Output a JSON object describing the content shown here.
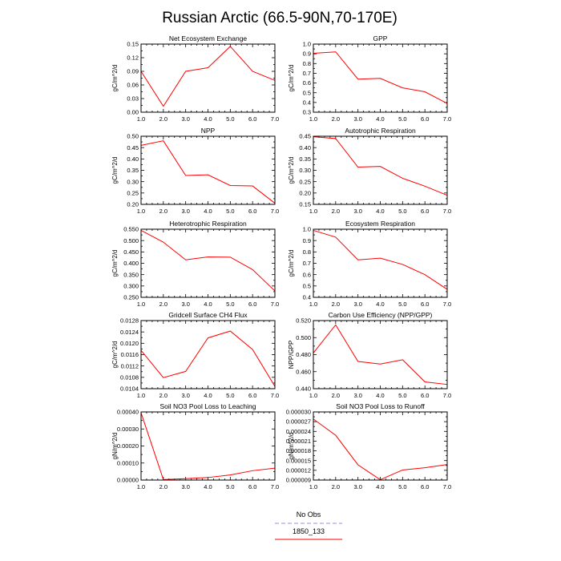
{
  "title": "Russian Arctic (66.5-90N,70-170E)",
  "legend": [
    {
      "name": "No Obs",
      "color": "#8c8cf2",
      "dash": true
    },
    {
      "name": "1850_133",
      "color": "#ff0000",
      "dash": false
    }
  ],
  "chart_data": [
    {
      "type": "line",
      "title": "Net Ecosystem Exchange",
      "ylabel": "gC/m^2/d",
      "x": [
        1,
        2,
        3,
        4,
        5,
        6,
        7
      ],
      "series": [
        {
          "name": "1850_133",
          "color": "#ff0000",
          "values": [
            0.09,
            0.013,
            0.09,
            0.098,
            0.145,
            0.09,
            0.07
          ]
        }
      ],
      "xlim": [
        1,
        7
      ],
      "ylim": [
        0,
        0.15
      ],
      "xticks": [
        "1.0",
        "2.0",
        "3.0",
        "4.0",
        "5.0",
        "6.0",
        "7.0"
      ],
      "yticks": [
        "0.00",
        "0.03",
        "0.06",
        "0.09",
        "0.12",
        "0.15"
      ]
    },
    {
      "type": "line",
      "title": "GPP",
      "ylabel": "gC/m^2/d",
      "x": [
        1,
        2,
        3,
        4,
        5,
        6,
        7
      ],
      "series": [
        {
          "name": "1850_133",
          "color": "#ff0000",
          "values": [
            0.905,
            0.92,
            0.64,
            0.648,
            0.55,
            0.51,
            0.39
          ]
        }
      ],
      "xlim": [
        1,
        7
      ],
      "ylim": [
        0.3,
        1.0
      ],
      "xticks": [
        "1.0",
        "2.0",
        "3.0",
        "4.0",
        "5.0",
        "6.0",
        "7.0"
      ],
      "yticks": [
        "0.3",
        "0.4",
        "0.5",
        "0.6",
        "0.7",
        "0.8",
        "0.9",
        "1.0"
      ]
    },
    {
      "type": "line",
      "title": "NPP",
      "ylabel": "gC/m^2/d",
      "x": [
        1,
        2,
        3,
        4,
        5,
        6,
        7
      ],
      "series": [
        {
          "name": "1850_133",
          "color": "#ff0000",
          "values": [
            0.46,
            0.48,
            0.327,
            0.33,
            0.283,
            0.281,
            0.205
          ]
        }
      ],
      "xlim": [
        1,
        7
      ],
      "ylim": [
        0.2,
        0.5
      ],
      "xticks": [
        "1.0",
        "2.0",
        "3.0",
        "4.0",
        "5.0",
        "6.0",
        "7.0"
      ],
      "yticks": [
        "0.20",
        "0.25",
        "0.30",
        "0.35",
        "0.40",
        "0.45",
        "0.50"
      ]
    },
    {
      "type": "line",
      "title": "Autotrophic Respiration",
      "ylabel": "gC/m^2/d",
      "x": [
        1,
        2,
        3,
        4,
        5,
        6,
        7
      ],
      "series": [
        {
          "name": "1850_133",
          "color": "#ff0000",
          "values": [
            0.448,
            0.44,
            0.314,
            0.317,
            0.265,
            0.23,
            0.19
          ]
        }
      ],
      "xlim": [
        1,
        7
      ],
      "ylim": [
        0.15,
        0.45
      ],
      "xticks": [
        "1.0",
        "2.0",
        "3.0",
        "4.0",
        "5.0",
        "6.0",
        "7.0"
      ],
      "yticks": [
        "0.15",
        "0.20",
        "0.25",
        "0.30",
        "0.35",
        "0.40",
        "0.45"
      ]
    },
    {
      "type": "line",
      "title": "Heterotrophic Respiration",
      "ylabel": "gC/m^2/d",
      "x": [
        1,
        2,
        3,
        4,
        5,
        6,
        7
      ],
      "series": [
        {
          "name": "1850_133",
          "color": "#ff0000",
          "values": [
            0.545,
            0.493,
            0.415,
            0.428,
            0.427,
            0.372,
            0.278
          ]
        }
      ],
      "xlim": [
        1,
        7
      ],
      "ylim": [
        0.25,
        0.55
      ],
      "xticks": [
        "1.0",
        "2.0",
        "3.0",
        "4.0",
        "5.0",
        "6.0",
        "7.0"
      ],
      "yticks": [
        "0.250",
        "0.300",
        "0.350",
        "0.400",
        "0.450",
        "0.500",
        "0.550"
      ]
    },
    {
      "type": "line",
      "title": "Ecosystem Respiration",
      "ylabel": "gC/m^2/d",
      "x": [
        1,
        2,
        3,
        4,
        5,
        6,
        7
      ],
      "series": [
        {
          "name": "1850_133",
          "color": "#ff0000",
          "values": [
            0.99,
            0.93,
            0.73,
            0.745,
            0.69,
            0.6,
            0.47
          ]
        }
      ],
      "xlim": [
        1,
        7
      ],
      "ylim": [
        0.4,
        1.0
      ],
      "xticks": [
        "1.0",
        "2.0",
        "3.0",
        "4.0",
        "5.0",
        "6.0",
        "7.0"
      ],
      "yticks": [
        "0.4",
        "0.5",
        "0.6",
        "0.7",
        "0.8",
        "0.9",
        "1.0"
      ]
    },
    {
      "type": "line",
      "title": "Gridcell Surface CH4 Flux",
      "ylabel": "gC/m^2/d",
      "x": [
        1,
        2,
        3,
        4,
        5,
        6,
        7
      ],
      "series": [
        {
          "name": "1850_133",
          "color": "#ff0000",
          "values": [
            0.01175,
            0.01079,
            0.01101,
            0.01219,
            0.01243,
            0.01178,
            0.01048
          ]
        }
      ],
      "xlim": [
        1,
        7
      ],
      "ylim": [
        0.0104,
        0.0128
      ],
      "xticks": [
        "1.0",
        "2.0",
        "3.0",
        "4.0",
        "5.0",
        "6.0",
        "7.0"
      ],
      "yticks": [
        "0.0104",
        "0.0108",
        "0.0112",
        "0.0116",
        "0.0120",
        "0.0124",
        "0.0128"
      ]
    },
    {
      "type": "line",
      "title": "Carbon Use Efficiency (NPP/GPP)",
      "ylabel": "NPP/GPP",
      "x": [
        1,
        2,
        3,
        4,
        5,
        6,
        7
      ],
      "series": [
        {
          "name": "1850_133",
          "color": "#ff0000",
          "values": [
            0.482,
            0.515,
            0.472,
            0.469,
            0.474,
            0.448,
            0.445
          ]
        }
      ],
      "xlim": [
        1,
        7
      ],
      "ylim": [
        0.44,
        0.52
      ],
      "xticks": [
        "1.0",
        "2.0",
        "3.0",
        "4.0",
        "5.0",
        "6.0",
        "7.0"
      ],
      "yticks": [
        "0.440",
        "0.460",
        "0.480",
        "0.500",
        "0.520"
      ]
    },
    {
      "type": "line",
      "title": "Soil NO3 Pool Loss to Leaching",
      "ylabel": "gN/m^2/d",
      "x": [
        1,
        2,
        3,
        4,
        5,
        6,
        7
      ],
      "series": [
        {
          "name": "1850_133",
          "color": "#ff0000",
          "values": [
            0.000395,
            3e-06,
            8e-06,
            1.5e-05,
            3e-05,
            5.5e-05,
            7e-05
          ]
        }
      ],
      "xlim": [
        1,
        7
      ],
      "ylim": [
        0,
        0.0004
      ],
      "xticks": [
        "1.0",
        "2.0",
        "3.0",
        "4.0",
        "5.0",
        "6.0",
        "7.0"
      ],
      "yticks": [
        "0.00000",
        "0.00010",
        "0.00020",
        "0.00030",
        "0.00040"
      ]
    },
    {
      "type": "line",
      "title": "Soil NO3 Pool Loss to Runoff",
      "ylabel": "gN/m^2/d",
      "x": [
        1,
        2,
        3,
        4,
        5,
        6,
        7
      ],
      "series": [
        {
          "name": "1850_133",
          "color": "#ff0000",
          "values": [
            2.78e-05,
            2.28e-05,
            1.37e-05,
            9.1e-06,
            1.21e-05,
            1.28e-05,
            1.38e-05
          ]
        }
      ],
      "xlim": [
        1,
        7
      ],
      "ylim": [
        9e-06,
        3e-05
      ],
      "xticks": [
        "1.0",
        "2.0",
        "3.0",
        "4.0",
        "5.0",
        "6.0",
        "7.0"
      ],
      "yticks": [
        "0.000009",
        "0.000012",
        "0.000015",
        "0.000018",
        "0.000021",
        "0.000024",
        "0.000027",
        "0.000030"
      ]
    }
  ]
}
